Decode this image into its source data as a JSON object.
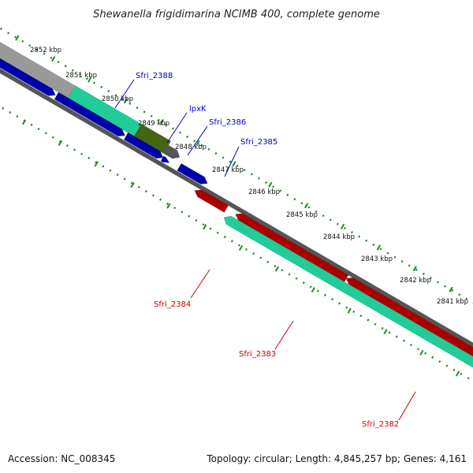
{
  "title": "Shewanella frigidimarina NCIMB 400, complete genome",
  "footer": {
    "accession": "Accession: NC_008345",
    "topology": "Topology: circular; Length: 4,845,257 bp; Genes: 4,161"
  },
  "colors": {
    "backbone": "#777777",
    "forward_cds": "#0000ee",
    "reverse_cds": "#ee0000",
    "rna_teal": "#33ffbb",
    "olive": "#669922",
    "gray_feature": "#bbbbbb",
    "ticks": "#228822",
    "label_forward": "#0000cc",
    "label_reverse": "#cc0000"
  },
  "ruler_labels": [
    "2852 kbp",
    "2851 kbp",
    "2850 kbp",
    "2849 kbp",
    "2848 kbp",
    "2847 kbp",
    "2846 kbp",
    "2845 kbp",
    "2844 kbp",
    "2843 kbp",
    "2842 kbp",
    "2841 kbp"
  ],
  "forward_gene_labels": [
    "Sfri_2388",
    "lpxK",
    "Sfri_2386",
    "Sfri_2385"
  ],
  "reverse_gene_labels": [
    "Sfri_2384",
    "Sfri_2383",
    "Sfri_2382"
  ]
}
